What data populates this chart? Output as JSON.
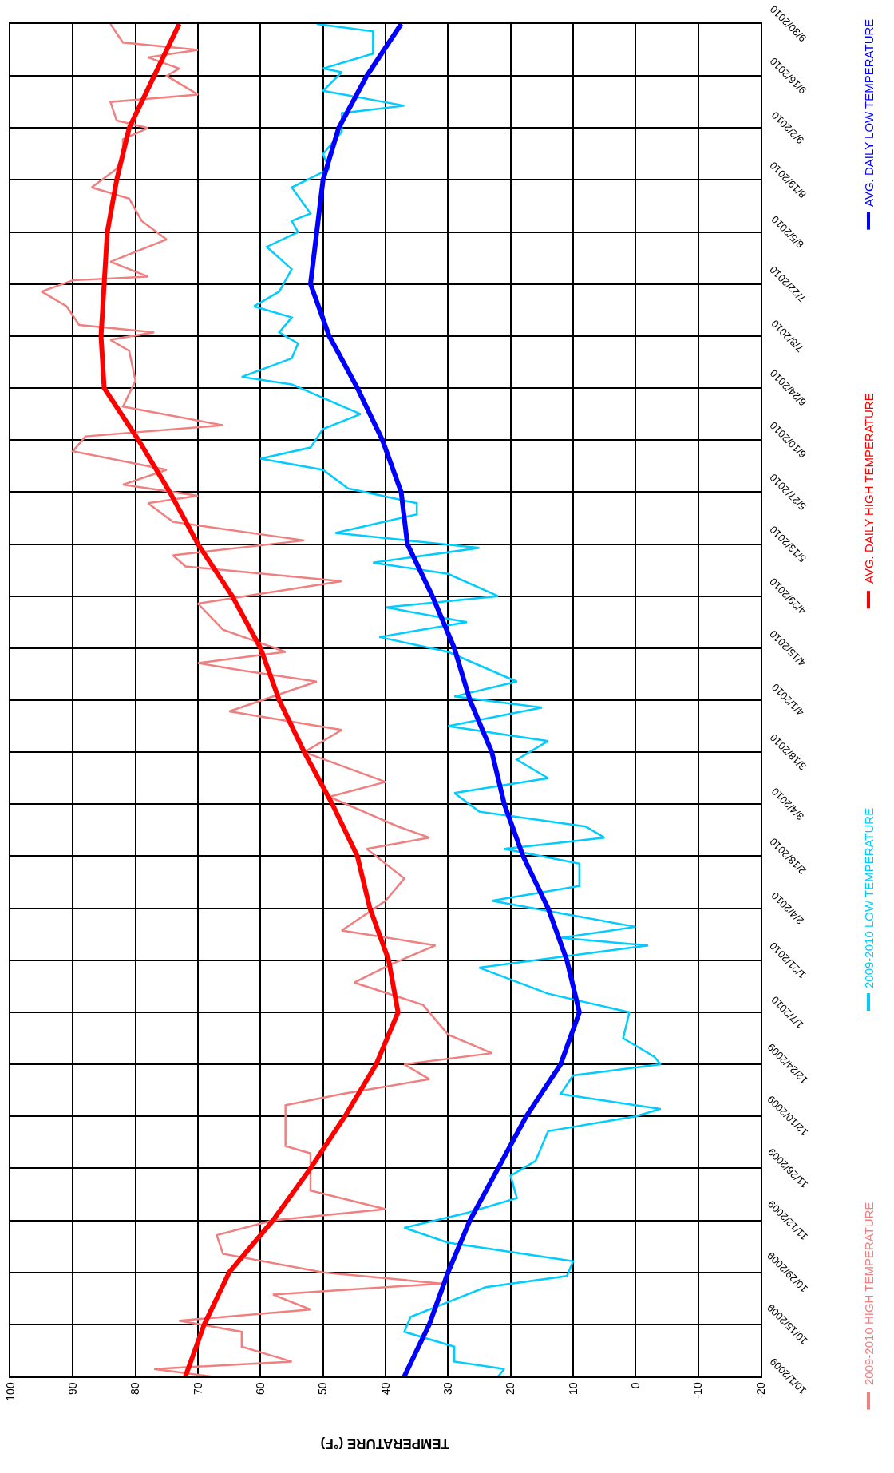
{
  "chart_data": {
    "type": "line",
    "orientation": "horizontal",
    "xlabel": "TEMPERATURE (°F)",
    "ylim": [
      "2009-10-01",
      "2010-09-30"
    ],
    "yticks": [
      {
        "value": "2009-10-01",
        "label": "10/1/2009"
      },
      {
        "value": "2009-10-15",
        "label": "10/15/2009"
      },
      {
        "value": "2009-10-29",
        "label": "10/29/2009"
      },
      {
        "value": "2009-11-12",
        "label": "11/12/2009"
      },
      {
        "value": "2009-11-26",
        "label": "11/26/2009"
      },
      {
        "value": "2009-12-10",
        "label": "12/10/2009"
      },
      {
        "value": "2009-12-24",
        "label": "12/24/2009"
      },
      {
        "value": "2010-01-07",
        "label": "1/7/2010"
      },
      {
        "value": "2010-01-21",
        "label": "1/21/2010"
      },
      {
        "value": "2010-02-04",
        "label": "2/4/2010"
      },
      {
        "value": "2010-02-18",
        "label": "2/18/2010"
      },
      {
        "value": "2010-03-04",
        "label": "3/4/2010"
      },
      {
        "value": "2010-03-18",
        "label": "3/18/2010"
      },
      {
        "value": "2010-04-01",
        "label": "4/1/2010"
      },
      {
        "value": "2010-04-15",
        "label": "4/15/2010"
      },
      {
        "value": "2010-04-29",
        "label": "4/29/2010"
      },
      {
        "value": "2010-05-13",
        "label": "5/13/2010"
      },
      {
        "value": "2010-05-27",
        "label": "5/27/2010"
      },
      {
        "value": "2010-06-10",
        "label": "6/10/2010"
      },
      {
        "value": "2010-06-24",
        "label": "6/24/2010"
      },
      {
        "value": "2010-07-08",
        "label": "7/8/2010"
      },
      {
        "value": "2010-07-22",
        "label": "7/22/2010"
      },
      {
        "value": "2010-08-05",
        "label": "8/5/2010"
      },
      {
        "value": "2010-08-19",
        "label": "8/19/2010"
      },
      {
        "value": "2010-09-02",
        "label": "9/2/2010"
      },
      {
        "value": "2010-09-16",
        "label": "9/16/2010"
      },
      {
        "value": "2010-09-30",
        "label": "9/30/2010"
      }
    ],
    "xlim": [
      100,
      -20
    ],
    "xticks": [
      100,
      90,
      80,
      70,
      60,
      50,
      40,
      30,
      20,
      10,
      0,
      -10,
      -20
    ],
    "grid": true,
    "legend": "right",
    "marker": "none",
    "line_style": "solid",
    "series": [
      {
        "name": "2009-2010 HIGH TEMPERATURE",
        "color": "#f08080",
        "x": [
          "2009-10-01",
          "2009-10-03",
          "2009-10-05",
          "2009-10-07",
          "2009-10-09",
          "2009-10-13",
          "2009-10-16",
          "2009-10-19",
          "2009-10-23",
          "2009-10-26",
          "2009-10-29",
          "2009-11-03",
          "2009-11-08",
          "2009-11-12",
          "2009-11-15",
          "2009-11-20",
          "2009-11-30",
          "2009-12-02",
          "2009-12-13",
          "2009-12-16",
          "2009-12-20",
          "2009-12-24",
          "2009-12-27",
          "2010-01-01",
          "2010-01-09",
          "2010-01-15",
          "2010-01-20",
          "2010-01-25",
          "2010-01-29",
          "2010-02-06",
          "2010-02-12",
          "2010-02-20",
          "2010-02-23",
          "2010-02-26",
          "2010-03-06",
          "2010-03-10",
          "2010-03-18",
          "2010-03-24",
          "2010-03-29",
          "2010-04-06",
          "2010-04-09",
          "2010-04-11",
          "2010-04-14",
          "2010-04-20",
          "2010-04-27",
          "2010-05-03",
          "2010-05-07",
          "2010-05-10",
          "2010-05-14",
          "2010-05-19",
          "2010-05-24",
          "2010-05-26",
          "2010-05-29",
          "2010-06-02",
          "2010-06-07",
          "2010-06-11",
          "2010-06-14",
          "2010-06-19",
          "2010-06-26",
          "2010-07-04",
          "2010-07-07",
          "2010-07-09",
          "2010-07-11",
          "2010-07-16",
          "2010-07-20",
          "2010-07-23",
          "2010-07-24",
          "2010-07-28",
          "2010-08-03",
          "2010-08-08",
          "2010-08-14",
          "2010-08-17",
          "2010-08-22",
          "2010-08-26",
          "2010-08-30",
          "2010-09-02",
          "2010-09-04",
          "2010-09-09",
          "2010-09-11",
          "2010-09-16",
          "2010-09-18",
          "2010-09-21",
          "2010-09-23",
          "2010-09-25",
          "2010-09-30"
        ],
        "values": [
          68,
          77,
          55,
          59,
          63,
          63,
          73,
          52,
          58,
          31,
          50,
          66,
          67,
          58,
          40,
          52,
          52,
          56,
          56,
          47,
          33,
          37,
          23,
          30,
          34,
          45,
          39,
          32,
          47,
          40,
          37,
          43,
          33,
          38,
          49,
          40,
          53,
          47,
          65,
          51,
          63,
          70,
          56,
          66,
          70,
          47,
          72,
          74,
          53,
          74,
          78,
          70,
          82,
          75,
          90,
          88,
          66,
          82,
          80,
          81,
          84,
          77,
          89,
          91,
          95,
          90,
          78,
          84,
          75,
          79,
          81,
          87,
          83,
          82,
          82,
          78,
          83,
          84,
          70,
          75,
          73,
          78,
          70,
          82,
          84
        ]
      },
      {
        "name": "2009-2010 LOW TEMPERATURE",
        "color": "#00ccff",
        "x": [
          "2009-10-01",
          "2009-10-03",
          "2009-10-05",
          "2009-10-09",
          "2009-10-13",
          "2009-10-17",
          "2009-10-21",
          "2009-10-25",
          "2009-10-28",
          "2009-11-01",
          "2009-11-06",
          "2009-11-10",
          "2009-11-14",
          "2009-11-18",
          "2009-11-24",
          "2009-11-28",
          "2009-12-06",
          "2009-12-10",
          "2009-12-12",
          "2009-12-16",
          "2009-12-21",
          "2009-12-24",
          "2009-12-26",
          "2009-12-31",
          "2010-01-07",
          "2010-01-12",
          "2010-01-19",
          "2010-01-25",
          "2010-01-27",
          "2010-01-30",
          "2010-02-06",
          "2010-02-10",
          "2010-02-16",
          "2010-02-20",
          "2010-02-23",
          "2010-02-26",
          "2010-03-02",
          "2010-03-07",
          "2010-03-11",
          "2010-03-16",
          "2010-03-21",
          "2010-03-25",
          "2010-03-30",
          "2010-04-02",
          "2010-04-06",
          "2010-04-14",
          "2010-04-18",
          "2010-04-22",
          "2010-04-26",
          "2010-04-29",
          "2010-05-05",
          "2010-05-08",
          "2010-05-12",
          "2010-05-16",
          "2010-05-21",
          "2010-05-24",
          "2010-05-28",
          "2010-06-02",
          "2010-06-05",
          "2010-06-08",
          "2010-06-13",
          "2010-06-17",
          "2010-06-25",
          "2010-06-27",
          "2010-07-02",
          "2010-07-06",
          "2010-07-09",
          "2010-07-13",
          "2010-07-16",
          "2010-07-20",
          "2010-07-26",
          "2010-08-01",
          "2010-08-05",
          "2010-08-08",
          "2010-08-10",
          "2010-08-17",
          "2010-08-22",
          "2010-08-26",
          "2010-09-01",
          "2010-09-06",
          "2010-09-08",
          "2010-09-12",
          "2010-09-17",
          "2010-09-18",
          "2010-09-22",
          "2010-09-28",
          "2010-09-30"
        ],
        "values": [
          22,
          21,
          29,
          29,
          37,
          36,
          30,
          24,
          11,
          10,
          30,
          37,
          27,
          19,
          20,
          16,
          14,
          0,
          -4,
          12,
          10,
          -4,
          -3,
          2,
          1,
          14,
          25,
          -2,
          12,
          0,
          23,
          9,
          9,
          21,
          5,
          8,
          25,
          29,
          14,
          19,
          14,
          30,
          15,
          29,
          19,
          30,
          41,
          27,
          40,
          22,
          30,
          42,
          25,
          48,
          35,
          35,
          46,
          50,
          60,
          52,
          50,
          44,
          55,
          63,
          55,
          54,
          57,
          55,
          61,
          57,
          55,
          59,
          54,
          55,
          52,
          55,
          49,
          50,
          47,
          47,
          37,
          50,
          47,
          50,
          42,
          42,
          51
        ]
      },
      {
        "name": "AVG. DAILY HIGH TEMPERATURE",
        "color": "#ff0000",
        "x": [
          "2009-10-01",
          "2009-10-15",
          "2009-10-29",
          "2009-11-12",
          "2009-11-26",
          "2009-12-10",
          "2009-12-24",
          "2010-01-07",
          "2010-01-21",
          "2010-02-04",
          "2010-02-18",
          "2010-03-04",
          "2010-03-18",
          "2010-04-01",
          "2010-04-15",
          "2010-04-29",
          "2010-05-13",
          "2010-05-27",
          "2010-06-10",
          "2010-06-24",
          "2010-07-08",
          "2010-07-22",
          "2010-08-05",
          "2010-08-19",
          "2010-09-02",
          "2010-09-16",
          "2010-09-30"
        ],
        "values": [
          72,
          69,
          65,
          58,
          52,
          46.5,
          41.5,
          38,
          39.5,
          42.5,
          44.5,
          48.5,
          53,
          57,
          60,
          64.5,
          70,
          74.5,
          79.5,
          85,
          85.5,
          85,
          84.5,
          83,
          81,
          77,
          73
        ]
      },
      {
        "name": "AVG. DAILY LOW TEMPERATURE",
        "color": "#0000ff",
        "x": [
          "2009-10-01",
          "2009-10-15",
          "2009-10-29",
          "2009-11-12",
          "2009-11-26",
          "2009-12-10",
          "2009-12-24",
          "2010-01-07",
          "2010-01-21",
          "2010-02-04",
          "2010-02-18",
          "2010-03-04",
          "2010-03-18",
          "2010-04-01",
          "2010-04-15",
          "2010-04-29",
          "2010-05-13",
          "2010-05-27",
          "2010-06-10",
          "2010-06-24",
          "2010-07-08",
          "2010-07-22",
          "2010-08-05",
          "2010-08-19",
          "2010-09-02",
          "2010-09-16",
          "2010-09-30"
        ],
        "values": [
          37,
          33,
          30,
          26.5,
          22,
          17.5,
          12,
          9,
          11,
          14,
          18,
          21,
          23,
          26.5,
          29,
          32.5,
          36.5,
          37.5,
          40.5,
          44.5,
          49,
          52,
          51,
          50,
          47.5,
          43,
          37.5
        ]
      }
    ]
  }
}
